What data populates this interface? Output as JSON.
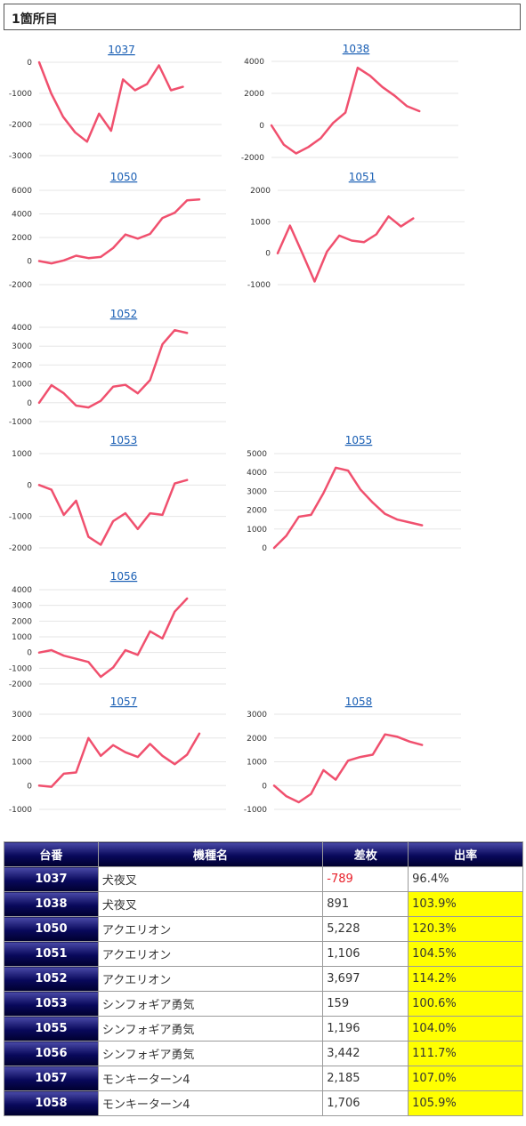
{
  "page": {
    "section_title": "1箇所目"
  },
  "table": {
    "headers": [
      "台番",
      "機種名",
      "差枚",
      "出率"
    ],
    "rows": [
      {
        "num": "1037",
        "machine": "犬夜叉",
        "diff": "-789",
        "rate": "96.4%",
        "negative": true,
        "highlight": false
      },
      {
        "num": "1038",
        "machine": "犬夜叉",
        "diff": "891",
        "rate": "103.9%",
        "negative": false,
        "highlight": true
      },
      {
        "num": "1050",
        "machine": "アクエリオン",
        "diff": "5,228",
        "rate": "120.3%",
        "negative": false,
        "highlight": true
      },
      {
        "num": "1051",
        "machine": "アクエリオン",
        "diff": "1,106",
        "rate": "104.5%",
        "negative": false,
        "highlight": true
      },
      {
        "num": "1052",
        "machine": "アクエリオン",
        "diff": "3,697",
        "rate": "114.2%",
        "negative": false,
        "highlight": true
      },
      {
        "num": "1053",
        "machine": "シンフォギア勇気",
        "diff": "159",
        "rate": "100.6%",
        "negative": false,
        "highlight": true
      },
      {
        "num": "1055",
        "machine": "シンフォギア勇気",
        "diff": "1,196",
        "rate": "104.0%",
        "negative": false,
        "highlight": true
      },
      {
        "num": "1056",
        "machine": "シンフォギア勇気",
        "diff": "3,442",
        "rate": "111.7%",
        "negative": false,
        "highlight": true
      },
      {
        "num": "1057",
        "machine": "モンキーターン4",
        "diff": "2,185",
        "rate": "107.0%",
        "negative": false,
        "highlight": true
      },
      {
        "num": "1058",
        "machine": "モンキーターン4",
        "diff": "1,706",
        "rate": "105.9%",
        "negative": false,
        "highlight": true
      }
    ]
  },
  "colors": {
    "line": "#f0506e",
    "grid": "#e6e6e6",
    "header_bg": "#0a0a5e",
    "highlight": "#ffff00",
    "negative_text": "#e8202a",
    "link": "#1a5fb4"
  },
  "chart_data": [
    {
      "type": "line",
      "title": "1037",
      "ylim": [
        -3000,
        0
      ],
      "yticks": [
        0,
        -1000,
        -2000,
        -3000
      ],
      "grid": true,
      "values": [
        0,
        -1000,
        -1750,
        -2250,
        -2550,
        -1650,
        -2200,
        -550,
        -900,
        -700,
        -100,
        -900,
        -789
      ]
    },
    {
      "type": "line",
      "title": "1038",
      "ylim": [
        -2000,
        4000
      ],
      "yticks": [
        4000,
        2000,
        0,
        -2000
      ],
      "grid": true,
      "values": [
        0,
        -1200,
        -1750,
        -1350,
        -800,
        150,
        800,
        3600,
        3100,
        2400,
        1850,
        1200,
        891
      ]
    },
    {
      "type": "line",
      "title": "1050",
      "ylim": [
        -2000,
        6000
      ],
      "yticks": [
        6000,
        4000,
        2000,
        0,
        -2000
      ],
      "grid": true,
      "values": [
        0,
        -200,
        50,
        450,
        250,
        350,
        1100,
        2250,
        1900,
        2300,
        3650,
        4100,
        5150,
        5228
      ]
    },
    {
      "type": "line",
      "title": "1051",
      "ylim": [
        -1000,
        2000
      ],
      "yticks": [
        2000,
        1000,
        0,
        -1000
      ],
      "grid": true,
      "values": [
        0,
        880,
        0,
        -900,
        50,
        560,
        400,
        350,
        600,
        1170,
        850,
        1106
      ]
    },
    {
      "type": "line",
      "title": "1052",
      "ylim": [
        -1000,
        4000
      ],
      "yticks": [
        4000,
        3000,
        2000,
        1000,
        0,
        -1000
      ],
      "grid": true,
      "values": [
        0,
        930,
        500,
        -150,
        -250,
        100,
        850,
        950,
        500,
        1200,
        3100,
        3850,
        3697
      ]
    },
    {
      "type": "line",
      "title": "1053",
      "ylim": [
        -2000,
        1000
      ],
      "yticks": [
        1000,
        0,
        -1000,
        -2000
      ],
      "grid": true,
      "values": [
        0,
        -150,
        -950,
        -500,
        -1650,
        -1900,
        -1150,
        -900,
        -1400,
        -900,
        -950,
        50,
        159
      ]
    },
    {
      "type": "line",
      "title": "1055",
      "ylim": [
        0,
        5000
      ],
      "yticks": [
        5000,
        4000,
        3000,
        2000,
        1000,
        0
      ],
      "grid": true,
      "values": [
        0,
        650,
        1650,
        1750,
        2900,
        4250,
        4100,
        3100,
        2400,
        1800,
        1500,
        1350,
        1196
      ]
    },
    {
      "type": "line",
      "title": "1056",
      "ylim": [
        -2000,
        4000
      ],
      "yticks": [
        4000,
        3000,
        2000,
        1000,
        0,
        -1000,
        -2000
      ],
      "grid": true,
      "values": [
        0,
        150,
        -200,
        -400,
        -600,
        -1550,
        -950,
        150,
        -150,
        1350,
        900,
        2600,
        3442
      ]
    },
    {
      "type": "line",
      "title": "1057",
      "ylim": [
        -1000,
        3000
      ],
      "yticks": [
        3000,
        2000,
        1000,
        0,
        -1000
      ],
      "grid": true,
      "values": [
        0,
        -50,
        500,
        550,
        2000,
        1250,
        1700,
        1400,
        1200,
        1750,
        1250,
        900,
        1300,
        2185
      ]
    },
    {
      "type": "line",
      "title": "1058",
      "ylim": [
        -1000,
        3000
      ],
      "yticks": [
        3000,
        2000,
        1000,
        0,
        -1000
      ],
      "grid": true,
      "values": [
        0,
        -450,
        -700,
        -350,
        650,
        250,
        1050,
        1200,
        1300,
        2150,
        2050,
        1850,
        1706
      ]
    }
  ]
}
